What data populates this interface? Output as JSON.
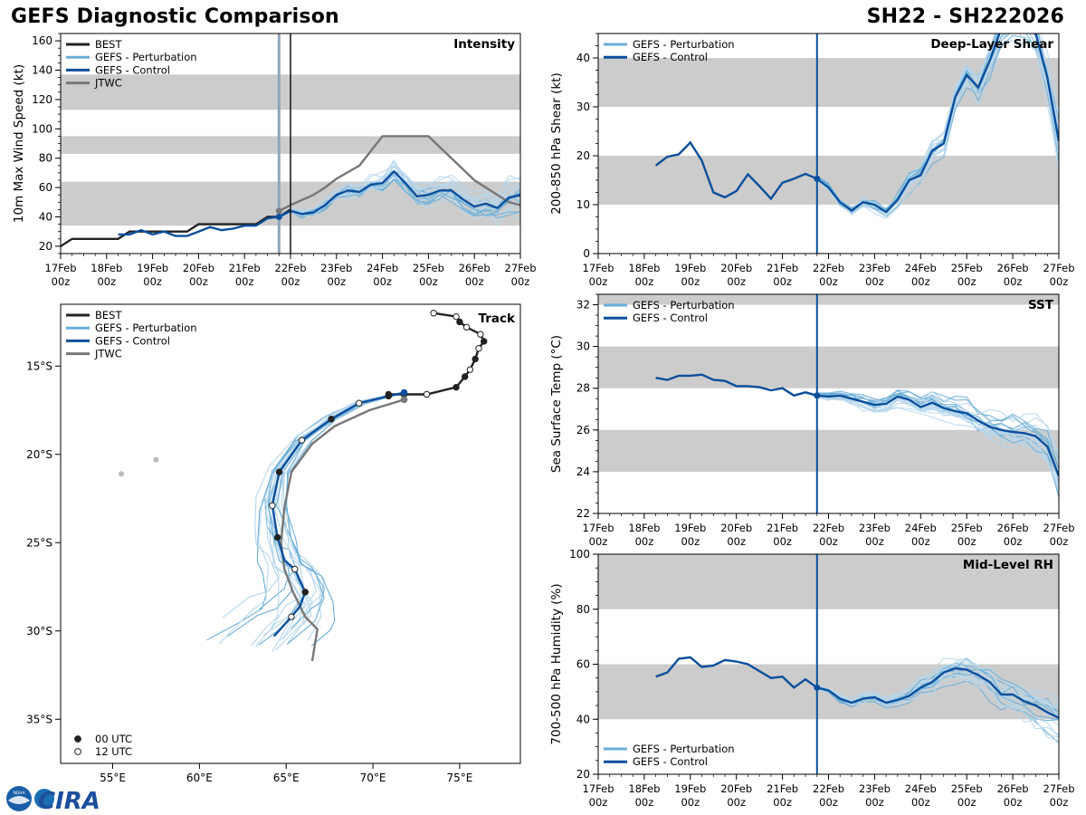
{
  "header": {
    "title": "GEFS Diagnostic Comparison",
    "storm_id": "SH22 - SH222026"
  },
  "logo": {
    "text": "CIRA",
    "noaa_label": "NOAA"
  },
  "colors": {
    "best": "#222222",
    "perturbation": "#6aaed6",
    "control": "#0b4f9c",
    "jtwc": "#777777",
    "band": "#cccccc"
  },
  "chart_data": [
    {
      "id": "intensity",
      "type": "line",
      "title": "Intensity",
      "ylabel": "10m Max Wind Speed (kt)",
      "xlim": [
        0,
        240
      ],
      "ylim": [
        15,
        165
      ],
      "yticks": [
        20,
        40,
        60,
        80,
        100,
        120,
        140,
        160
      ],
      "xticks": [
        {
          "h": 0,
          "d": "17Feb",
          "z": "00z"
        },
        {
          "h": 24,
          "d": "18Feb",
          "z": "00z"
        },
        {
          "h": 48,
          "d": "19Feb",
          "z": "00z"
        },
        {
          "h": 72,
          "d": "20Feb",
          "z": "00z"
        },
        {
          "h": 96,
          "d": "21Feb",
          "z": "00z"
        },
        {
          "h": 120,
          "d": "22Feb",
          "z": "00z"
        },
        {
          "h": 144,
          "d": "23Feb",
          "z": "00z"
        },
        {
          "h": 168,
          "d": "24Feb",
          "z": "00z"
        },
        {
          "h": 192,
          "d": "25Feb",
          "z": "00z"
        },
        {
          "h": 216,
          "d": "26Feb",
          "z": "00z"
        },
        {
          "h": 240,
          "d": "27Feb",
          "z": "00z"
        }
      ],
      "bands": [
        [
          34,
          64
        ],
        [
          83,
          95
        ],
        [
          113,
          137
        ]
      ],
      "init_hour": 114,
      "vline_hour": 120,
      "legend": [
        "BEST",
        "GEFS - Perturbation",
        "GEFS - Control",
        "JTWC"
      ],
      "best": {
        "x": [
          0,
          6,
          12,
          18,
          24,
          30,
          36,
          42,
          48,
          54,
          60,
          66,
          72,
          78,
          84,
          90,
          96,
          102,
          108,
          114,
          120
        ],
        "y": [
          20,
          25,
          25,
          25,
          25,
          25,
          30,
          30,
          30,
          30,
          30,
          30,
          35,
          35,
          35,
          35,
          35,
          35,
          40,
          40,
          45
        ]
      },
      "control": {
        "x": [
          30,
          36,
          42,
          48,
          54,
          60,
          66,
          72,
          78,
          84,
          90,
          96,
          102,
          108,
          114,
          120,
          126,
          132,
          138,
          144,
          150,
          156,
          162,
          168,
          174,
          180,
          186,
          192,
          198,
          204,
          210,
          216,
          222,
          228,
          234,
          240
        ],
        "y": [
          28,
          28,
          31,
          28,
          30,
          27,
          27,
          30,
          33,
          31,
          32,
          34,
          34,
          39,
          40,
          44,
          42,
          43,
          48,
          55,
          58,
          57,
          62,
          63,
          71,
          63,
          54,
          55,
          58,
          58,
          52,
          47,
          49,
          46,
          53,
          55
        ]
      },
      "jtwc": {
        "x": [
          114,
          120,
          132,
          138,
          144,
          156,
          168,
          180,
          192,
          204,
          216,
          228,
          234,
          240
        ],
        "y": [
          44,
          48,
          55,
          60,
          66,
          75,
          95,
          95,
          95,
          80,
          65,
          55,
          50,
          48
        ]
      },
      "perturbation_count": 20
    },
    {
      "id": "shear",
      "type": "line",
      "title": "Deep-Layer Shear",
      "ylabel": "200-850 hPa Shear (kt)",
      "xlim": [
        0,
        240
      ],
      "ylim": [
        0,
        45
      ],
      "yticks": [
        0,
        10,
        20,
        30,
        40
      ],
      "bands": [
        [
          10,
          20
        ],
        [
          30,
          40
        ]
      ],
      "init_hour": 114,
      "legend": [
        "GEFS - Perturbation",
        "GEFS - Control"
      ],
      "control": {
        "x": [
          30,
          36,
          42,
          48,
          54,
          60,
          66,
          72,
          78,
          84,
          90,
          96,
          102,
          108,
          114,
          120,
          126,
          132,
          138,
          144,
          150,
          156,
          162,
          168,
          174,
          180,
          186,
          192,
          198,
          204,
          210,
          216,
          222,
          228,
          234,
          240
        ],
        "y": [
          18,
          19.8,
          20.3,
          22.7,
          19,
          12.5,
          11.5,
          12.8,
          16.2,
          13.8,
          11.2,
          14.5,
          15.3,
          16.3,
          15.3,
          13.5,
          10.5,
          8.8,
          10.5,
          10,
          8.5,
          11,
          15,
          16,
          21,
          22.5,
          32,
          36.5,
          34,
          39.5,
          46,
          48,
          48,
          45,
          36,
          23
        ]
      },
      "perturbation_count": 20
    },
    {
      "id": "sst",
      "type": "line",
      "title": "SST",
      "ylabel": "Sea Surface Temp (°C)",
      "xlim": [
        0,
        240
      ],
      "ylim": [
        22,
        32.5
      ],
      "yticks": [
        22,
        24,
        26,
        28,
        30,
        32
      ],
      "bands": [
        [
          24,
          26
        ],
        [
          28,
          30
        ],
        [
          32,
          34
        ]
      ],
      "init_hour": 114,
      "legend": [
        "GEFS - Perturbation",
        "GEFS - Control"
      ],
      "control": {
        "x": [
          30,
          36,
          42,
          48,
          54,
          60,
          66,
          72,
          78,
          84,
          90,
          96,
          102,
          108,
          114,
          120,
          126,
          132,
          138,
          144,
          150,
          156,
          162,
          168,
          174,
          180,
          186,
          192,
          198,
          204,
          210,
          216,
          222,
          228,
          234,
          240
        ],
        "y": [
          28.5,
          28.4,
          28.6,
          28.6,
          28.65,
          28.4,
          28.35,
          28.1,
          28.1,
          28.05,
          27.9,
          28,
          27.65,
          27.8,
          27.65,
          27.6,
          27.65,
          27.5,
          27.35,
          27.2,
          27.25,
          27.6,
          27.45,
          27.1,
          27.3,
          27.05,
          26.9,
          26.8,
          26.45,
          26.15,
          26,
          25.9,
          25.85,
          25.7,
          25.2,
          23.8
        ]
      },
      "perturbation_count": 20
    },
    {
      "id": "rh",
      "type": "line",
      "title": "Mid-Level RH",
      "ylabel": "700-500 hPa Humidity (%)",
      "xlim": [
        0,
        240
      ],
      "ylim": [
        20,
        100
      ],
      "yticks": [
        20,
        40,
        60,
        80,
        100
      ],
      "bands": [
        [
          40,
          60
        ],
        [
          80,
          100
        ]
      ],
      "init_hour": 114,
      "legend": [
        "GEFS - Perturbation",
        "GEFS - Control"
      ],
      "control": {
        "x": [
          30,
          36,
          42,
          48,
          54,
          60,
          66,
          72,
          78,
          84,
          90,
          96,
          102,
          108,
          114,
          120,
          126,
          132,
          138,
          144,
          150,
          156,
          162,
          168,
          174,
          180,
          186,
          192,
          198,
          204,
          210,
          216,
          222,
          228,
          234,
          240
        ],
        "y": [
          55.5,
          57,
          62,
          62.5,
          59,
          59.5,
          61.5,
          61,
          60,
          57.5,
          55,
          55.5,
          51.5,
          54.5,
          51.5,
          50.5,
          47.5,
          46,
          47.5,
          48,
          46,
          47,
          48.5,
          51.5,
          53.5,
          57,
          58.5,
          58,
          56,
          53.5,
          49,
          49,
          46.5,
          45,
          42.5,
          40.5
        ]
      },
      "perturbation_count": 20
    },
    {
      "id": "track",
      "type": "scatter",
      "title": "Track",
      "xlim": [
        52,
        78.5
      ],
      "ylim": [
        -37.5,
        -11.5
      ],
      "lon_ticks": [
        {
          "v": 55,
          "label": "55°E"
        },
        {
          "v": 60,
          "label": "60°E"
        },
        {
          "v": 65,
          "label": "65°E"
        },
        {
          "v": 70,
          "label": "70°E"
        },
        {
          "v": 75,
          "label": "75°E"
        }
      ],
      "lat_ticks": [
        {
          "v": -15,
          "label": "15°S"
        },
        {
          "v": -20,
          "label": "20°S"
        },
        {
          "v": -25,
          "label": "25°S"
        },
        {
          "v": -30,
          "label": "30°S"
        },
        {
          "v": -35,
          "label": "35°S"
        }
      ],
      "legend": [
        "BEST",
        "GEFS - Perturbation",
        "GEFS - Control",
        "JTWC"
      ],
      "marker_legend": [
        "00 UTC",
        "12 UTC"
      ],
      "best": {
        "lon": [
          73.5,
          74.8,
          75.0,
          75.4,
          76.2,
          76.4,
          76.1,
          75.9,
          75.6,
          75.3,
          74.8,
          73.1,
          71.8,
          70.9
        ],
        "lat": [
          -12.0,
          -12.2,
          -12.5,
          -12.8,
          -13.2,
          -13.6,
          -14.0,
          -14.6,
          -15.2,
          -15.6,
          -16.2,
          -16.6,
          -16.6,
          -16.6
        ],
        "utc": [
          12,
          12,
          0,
          12,
          12,
          0,
          12,
          0,
          12,
          0,
          0,
          12,
          0,
          0
        ]
      },
      "control": {
        "lon": [
          71.8,
          70.9,
          69.2,
          67.6,
          65.9,
          64.6,
          64.2,
          64.5,
          64.9,
          65.5,
          66.1,
          65.8,
          65.3,
          64.3
        ],
        "lat": [
          -16.5,
          -16.7,
          -17.1,
          -18.0,
          -19.2,
          -21.0,
          -22.9,
          -24.7,
          -26.0,
          -26.5,
          -27.8,
          -28.6,
          -29.2,
          -30.3
        ],
        "markers": [
          {
            "i": 1,
            "utc": 0
          },
          {
            "i": 2,
            "utc": 12
          },
          {
            "i": 3,
            "utc": 0
          },
          {
            "i": 4,
            "utc": 12
          },
          {
            "i": 5,
            "utc": 0
          },
          {
            "i": 6,
            "utc": 12
          },
          {
            "i": 7,
            "utc": 0
          },
          {
            "i": 9,
            "utc": 12
          },
          {
            "i": 10,
            "utc": 0
          },
          {
            "i": 12,
            "utc": 12
          }
        ]
      },
      "jtwc": {
        "lon": [
          71.8,
          69.8,
          67.8,
          66.5,
          65.3,
          64.9,
          64.7,
          64.9,
          65.4,
          66.1,
          66.8,
          66.5
        ],
        "lat": [
          -16.9,
          -17.5,
          -18.4,
          -19.4,
          -21.0,
          -23.0,
          -25.0,
          -26.5,
          -27.8,
          -29.2,
          -29.9,
          -31.7
        ]
      },
      "islands": [
        {
          "lon": 55.5,
          "lat": -21.1
        },
        {
          "lon": 57.5,
          "lat": -20.3
        }
      ],
      "perturbation_count": 20
    }
  ]
}
